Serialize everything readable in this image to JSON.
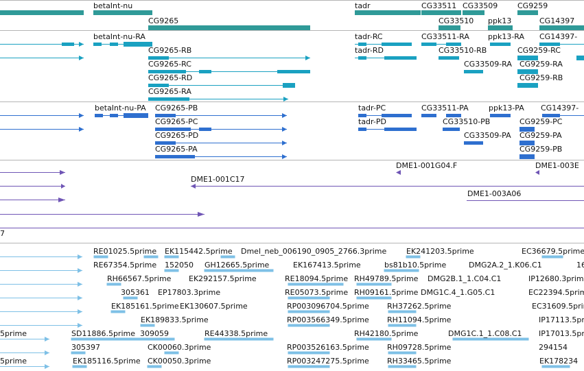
{
  "colors": {
    "gene": "#2f9a98",
    "transcript_cyan": "#1aa1c1",
    "transcript_blue": "#2e6fcf",
    "clone": "#6f55b5",
    "est": "#7ec0e6",
    "separator": "#b4b4b4"
  },
  "tracks": {
    "genes": {
      "labels": [
        "betaInt-nu",
        "CG9265",
        "tadr",
        "CG33511",
        "CG33509",
        "CG9259",
        "CG33510",
        "ppk13",
        "CG14397"
      ]
    },
    "transcripts_a": {
      "labels": [
        "betaInt-nu-RA",
        "CG9265-RB",
        "CG9265-RC",
        "CG9265-RD",
        "CG9265-RA",
        "tadr-RC",
        "tadr-RD",
        "CG33511-RA",
        "CG33510-RB",
        "CG33509-RA",
        "ppk13-RA",
        "CG14397-",
        "CG9259-RC",
        "CG9259-RA",
        "CG9259-RB"
      ]
    },
    "transcripts_b": {
      "labels": [
        "betaInt-nu-PA",
        "CG9265-PB",
        "CG9265-PC",
        "CG9265-PD",
        "CG9265-PA",
        "tadr-PC",
        "tadr-PD",
        "CG33511-PA",
        "CG33510-PB",
        "CG33509-PA",
        "ppk13-PA",
        "CG14397-",
        "CG9259-PC",
        "CG9259-PA",
        "CG9259-PB"
      ]
    },
    "clones": {
      "labels": [
        "DME1-001G04.F",
        "DME1-003E",
        "DME1-001C17",
        "DME1-003A06",
        "7"
      ]
    },
    "ests": {
      "labels": [
        "RE01025.5prime",
        "EK115442.5prime",
        "Dmel_neb_006190_0905_2766.3prime",
        "EK241203.5prime",
        "EC36679.5prime",
        "RE67354.5prime",
        "152050",
        "GH12665.5prime",
        "EK167413.5prime",
        "bs81b10.5prime",
        "DMG2A.2_1.K06.C1",
        "16",
        "RH66567.5prime",
        "EK292157.5prime",
        "RE18094.5prime",
        "RH49789.5prime",
        "DMG2B.1_1.C04.C1",
        "IP12680.3prime",
        "305361",
        "EP17803.3prime",
        "RE05073.5prime",
        "RH09161.5prime",
        "DMG1C.4_1.G05.C1",
        "EC22394.5prime",
        "EK185161.5prime",
        "EK130607.5prime",
        "RP003096704.5prime",
        "RH37262.5prime",
        "EC31609.5prime",
        "EK189833.5prime",
        "RP003566349.5prime",
        "RH11094.5prime",
        "IP17113.5prime",
        "5prime",
        "SD11886.5prime",
        "309059",
        "RE44338.5prime",
        "RH42180.5prime",
        "DMG1C.1_1.C08.C1",
        "IP17013.5prime",
        "305397",
        "CK00060.3prime",
        "RP003526163.5prime",
        "RH09728.5prime",
        "294154",
        "5prime",
        "EK185116.5prime",
        "CK00050.3prime",
        "RP003247275.5prime",
        "RH33465.5prime",
        "EK178234"
      ]
    }
  }
}
